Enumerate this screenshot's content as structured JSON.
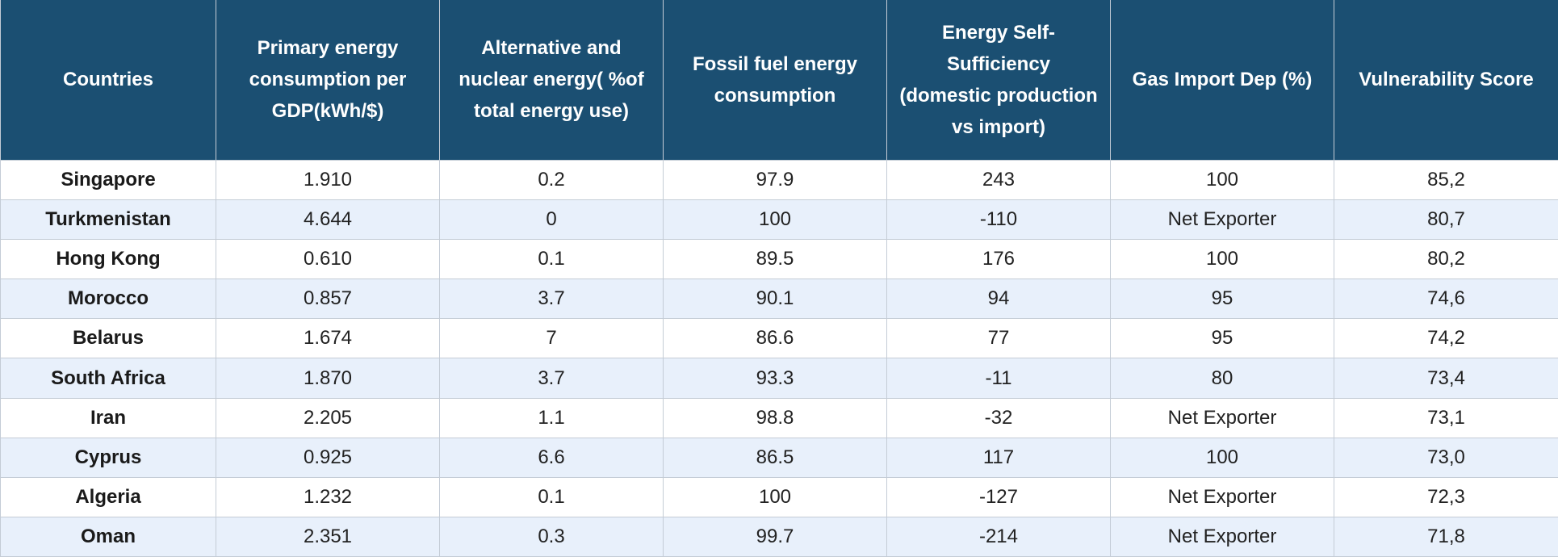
{
  "table": {
    "headers": [
      "Countries",
      "Primary energy consumption per GDP(kWh/$)",
      "Alternative and nuclear energy( %of total energy use)",
      "Fossil fuel energy consumption",
      "Energy Self-Sufficiency (domestic production vs import)",
      "Gas Import Dep (%)",
      "Vulnerability Score"
    ],
    "rows": [
      [
        "Singapore",
        "1.910",
        "0.2",
        "97.9",
        "243",
        "100",
        "85,2"
      ],
      [
        "Turkmenistan",
        "4.644",
        "0",
        "100",
        "-110",
        "Net Exporter",
        "80,7"
      ],
      [
        "Hong Kong",
        "0.610",
        "0.1",
        "89.5",
        "176",
        "100",
        "80,2"
      ],
      [
        "Morocco",
        "0.857",
        "3.7",
        "90.1",
        "94",
        "95",
        "74,6"
      ],
      [
        "Belarus",
        "1.674",
        "7",
        "86.6",
        "77",
        "95",
        "74,2"
      ],
      [
        "South Africa",
        "1.870",
        "3.7",
        "93.3",
        "-11",
        "80",
        "73,4"
      ],
      [
        "Iran",
        "2.205",
        "1.1",
        "98.8",
        "-32",
        "Net Exporter",
        "73,1"
      ],
      [
        "Cyprus",
        "0.925",
        "6.6",
        "86.5",
        "117",
        "100",
        "73,0"
      ],
      [
        "Algeria",
        "1.232",
        "0.1",
        "100",
        "-127",
        "Net Exporter",
        "72,3"
      ],
      [
        "Oman",
        "2.351",
        "0.3",
        "99.7",
        "-214",
        "Net Exporter",
        "71,8"
      ]
    ]
  }
}
